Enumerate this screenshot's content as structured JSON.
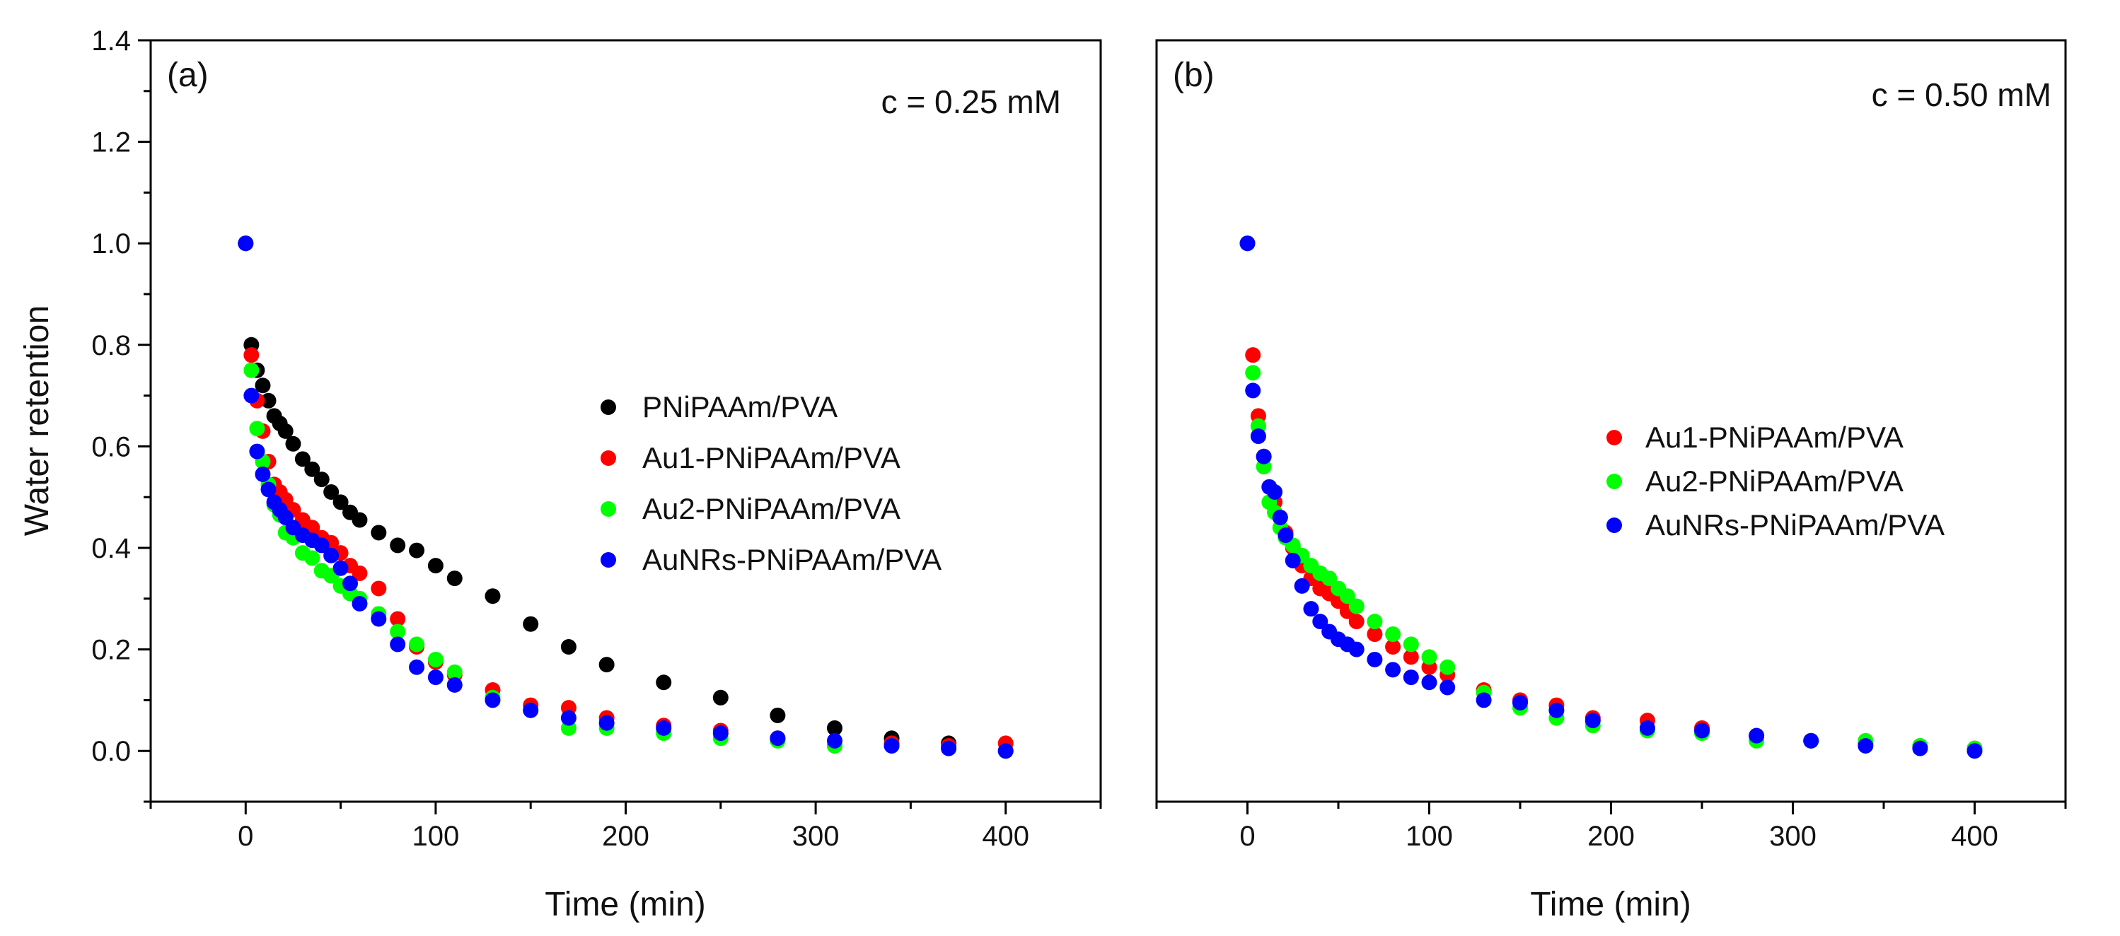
{
  "colors": {
    "PNiPAAm/PVA": "#000000",
    "Au1-PNiPAAm/PVA": "#ff0000",
    "Au2-PNiPAAm/PVA": "#00ff00",
    "AuNRs-PNiPAAm/PVA": "#0000ff"
  },
  "chart_data": [
    {
      "type": "scatter",
      "panel_label": "(a)",
      "annotation": "c = 0.25 mM",
      "xlabel": "Time (min)",
      "ylabel": "Water retention",
      "xlim": [
        -50,
        450
      ],
      "ylim": [
        -0.1,
        1.4
      ],
      "x_ticks": [
        0,
        100,
        200,
        300,
        400
      ],
      "x_tick_labels": [
        "0",
        "100",
        "200",
        "300",
        "400"
      ],
      "y_ticks": [
        0.0,
        0.2,
        0.4,
        0.6,
        0.8,
        1.0,
        1.2,
        1.4
      ],
      "y_tick_labels": [
        "0.0",
        "0.2",
        "0.4",
        "0.6",
        "0.8",
        "1.0",
        "1.2",
        "1.4"
      ],
      "legend_position": "center-right",
      "series": [
        {
          "name": "PNiPAAm/PVA",
          "x": [
            0,
            3,
            6,
            9,
            12,
            15,
            18,
            21,
            25,
            30,
            35,
            40,
            45,
            50,
            55,
            60,
            70,
            80,
            90,
            100,
            110,
            130,
            150,
            170,
            190,
            220,
            250,
            280,
            310,
            340,
            370,
            400
          ],
          "y": [
            1.0,
            0.8,
            0.75,
            0.72,
            0.69,
            0.66,
            0.645,
            0.63,
            0.605,
            0.575,
            0.555,
            0.535,
            0.51,
            0.49,
            0.47,
            0.455,
            0.43,
            0.405,
            0.395,
            0.365,
            0.34,
            0.305,
            0.25,
            0.205,
            0.17,
            0.135,
            0.105,
            0.07,
            0.045,
            0.025,
            0.015,
            0.0
          ]
        },
        {
          "name": "Au1-PNiPAAm/PVA",
          "x": [
            0,
            3,
            6,
            9,
            12,
            15,
            18,
            21,
            25,
            30,
            35,
            40,
            45,
            50,
            55,
            60,
            70,
            80,
            90,
            100,
            110,
            130,
            150,
            170,
            190,
            220,
            250,
            280,
            310,
            340,
            370,
            400
          ],
          "y": [
            1.0,
            0.78,
            0.69,
            0.63,
            0.57,
            0.525,
            0.51,
            0.495,
            0.475,
            0.455,
            0.44,
            0.42,
            0.41,
            0.39,
            0.365,
            0.35,
            0.32,
            0.26,
            0.205,
            0.175,
            0.15,
            0.12,
            0.09,
            0.085,
            0.065,
            0.05,
            0.04,
            0.025,
            0.01,
            0.015,
            0.01,
            0.015
          ]
        },
        {
          "name": "Au2-PNiPAAm/PVA",
          "x": [
            0,
            3,
            6,
            9,
            12,
            15,
            18,
            21,
            25,
            30,
            35,
            40,
            45,
            50,
            55,
            60,
            70,
            80,
            90,
            100,
            110,
            130,
            150,
            170,
            190,
            220,
            250,
            280,
            310,
            340,
            370,
            400
          ],
          "y": [
            1.0,
            0.75,
            0.635,
            0.57,
            0.525,
            0.485,
            0.465,
            0.43,
            0.42,
            0.39,
            0.38,
            0.355,
            0.345,
            0.325,
            0.31,
            0.3,
            0.27,
            0.235,
            0.21,
            0.18,
            0.155,
            0.105,
            0.08,
            0.045,
            0.045,
            0.035,
            0.025,
            0.02,
            0.01,
            0.01,
            0.005,
            0.0
          ]
        },
        {
          "name": "AuNRs-PNiPAAm/PVA",
          "x": [
            0,
            3,
            6,
            9,
            12,
            15,
            18,
            21,
            25,
            30,
            35,
            40,
            45,
            50,
            55,
            60,
            70,
            80,
            90,
            100,
            110,
            130,
            150,
            170,
            190,
            220,
            250,
            280,
            310,
            340,
            370,
            400
          ],
          "y": [
            1.0,
            0.7,
            0.59,
            0.545,
            0.515,
            0.49,
            0.475,
            0.46,
            0.44,
            0.425,
            0.415,
            0.405,
            0.385,
            0.36,
            0.33,
            0.29,
            0.26,
            0.21,
            0.165,
            0.145,
            0.13,
            0.1,
            0.08,
            0.065,
            0.055,
            0.045,
            0.035,
            0.025,
            0.02,
            0.01,
            0.005,
            0.0
          ]
        }
      ]
    },
    {
      "type": "scatter",
      "panel_label": "(b)",
      "annotation": "c = 0.50 mM",
      "xlabel": "Time (min)",
      "ylabel": "",
      "xlim": [
        -50,
        450
      ],
      "ylim": [
        -0.1,
        1.4
      ],
      "x_ticks": [
        0,
        100,
        200,
        300,
        400
      ],
      "x_tick_labels": [
        "0",
        "100",
        "200",
        "300",
        "400"
      ],
      "y_ticks": [],
      "y_tick_labels": [],
      "legend_position": "center-right",
      "series": [
        {
          "name": "Au1-PNiPAAm/PVA",
          "x": [
            0,
            3,
            6,
            9,
            12,
            15,
            18,
            21,
            25,
            30,
            35,
            40,
            45,
            50,
            55,
            60,
            70,
            80,
            90,
            100,
            110,
            130,
            150,
            170,
            190,
            220,
            250,
            280,
            310,
            340,
            370,
            400
          ],
          "y": [
            1.0,
            0.78,
            0.66,
            0.58,
            0.52,
            0.49,
            0.46,
            0.43,
            0.4,
            0.365,
            0.34,
            0.32,
            0.31,
            0.295,
            0.275,
            0.255,
            0.23,
            0.205,
            0.185,
            0.165,
            0.15,
            0.12,
            0.1,
            0.09,
            0.065,
            0.06,
            0.045,
            0.03,
            0.02,
            0.015,
            0.01,
            0.005
          ]
        },
        {
          "name": "Au2-PNiPAAm/PVA",
          "x": [
            0,
            3,
            6,
            9,
            12,
            15,
            18,
            21,
            25,
            30,
            35,
            40,
            45,
            50,
            55,
            60,
            70,
            80,
            90,
            100,
            110,
            130,
            150,
            170,
            190,
            220,
            250,
            280,
            310,
            340,
            370,
            400
          ],
          "y": [
            1.0,
            0.745,
            0.64,
            0.56,
            0.49,
            0.47,
            0.44,
            0.42,
            0.405,
            0.385,
            0.365,
            0.35,
            0.34,
            0.32,
            0.305,
            0.285,
            0.255,
            0.23,
            0.21,
            0.185,
            0.165,
            0.115,
            0.085,
            0.065,
            0.05,
            0.04,
            0.035,
            0.02,
            0.02,
            0.02,
            0.01,
            0.005
          ]
        },
        {
          "name": "AuNRs-PNiPAAm/PVA",
          "x": [
            0,
            3,
            6,
            9,
            12,
            15,
            18,
            21,
            25,
            30,
            35,
            40,
            45,
            50,
            55,
            60,
            70,
            80,
            90,
            100,
            110,
            130,
            150,
            170,
            190,
            220,
            250,
            280,
            310,
            340,
            370,
            400
          ],
          "y": [
            1.0,
            0.71,
            0.62,
            0.58,
            0.52,
            0.51,
            0.46,
            0.425,
            0.375,
            0.325,
            0.28,
            0.255,
            0.235,
            0.22,
            0.21,
            0.2,
            0.18,
            0.16,
            0.145,
            0.135,
            0.125,
            0.1,
            0.095,
            0.08,
            0.06,
            0.045,
            0.04,
            0.03,
            0.02,
            0.01,
            0.005,
            0.0
          ]
        }
      ]
    }
  ]
}
